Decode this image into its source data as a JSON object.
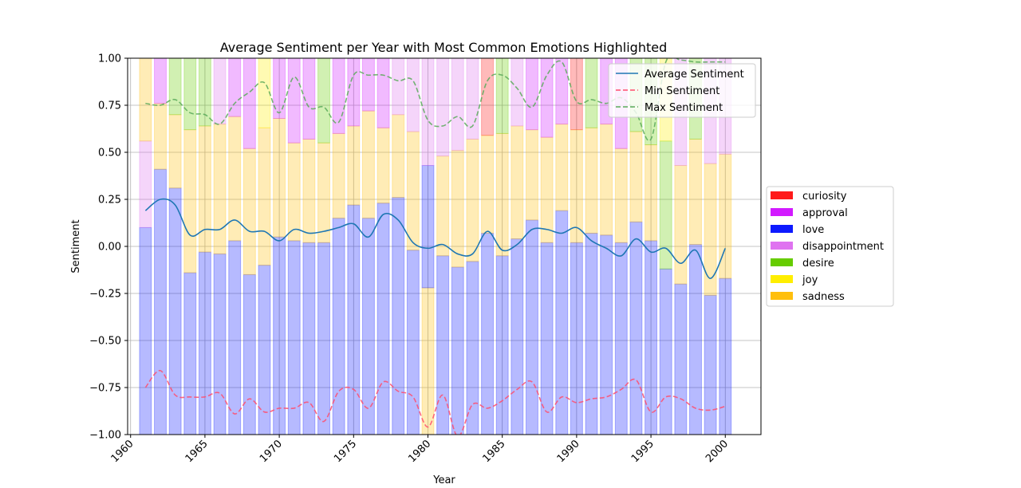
{
  "chart_data": {
    "type": "bar",
    "title": "Average Sentiment per Year with Most Common Emotions Highlighted",
    "xlabel": "Year",
    "ylabel": "Sentiment",
    "xlim": [
      1959.8,
      2002.4
    ],
    "ylim": [
      -1.0,
      1.0
    ],
    "xticks": [
      1960,
      1965,
      1970,
      1975,
      1980,
      1985,
      1990,
      1995,
      2000
    ],
    "yticks": [
      -1.0,
      -0.75,
      -0.5,
      -0.25,
      0.0,
      0.25,
      0.5,
      0.75,
      1.0
    ],
    "xtick_labels": [
      "1960",
      "1965",
      "1970",
      "1975",
      "1980",
      "1985",
      "1990",
      "1995",
      "2000"
    ],
    "ytick_labels": [
      "−1.00",
      "−0.75",
      "−0.50",
      "−0.25",
      "0.00",
      "0.25",
      "0.50",
      "0.75",
      "1.00"
    ],
    "grid": true,
    "emotion_legend_placement": "center-right outside",
    "line_legend_placement": "top-right",
    "emotion_colors": {
      "curiosity": "#ff1a1a",
      "approval": "#d21aff",
      "love": "#0d1aff",
      "disappointment": "#df73f0",
      "desire": "#66cc00",
      "joy": "#ffee00",
      "sadness": "#ffbf0d"
    },
    "emotion_legend": [
      "curiosity",
      "approval",
      "love",
      "disappointment",
      "desire",
      "joy",
      "sadness"
    ],
    "years": [
      1961,
      1962,
      1963,
      1964,
      1965,
      1966,
      1967,
      1968,
      1969,
      1970,
      1971,
      1972,
      1973,
      1974,
      1975,
      1976,
      1977,
      1978,
      1979,
      1980,
      1981,
      1982,
      1983,
      1984,
      1985,
      1986,
      1987,
      1988,
      1989,
      1990,
      1991,
      1992,
      1993,
      1994,
      1995,
      1996,
      1997,
      1998,
      1999,
      2000
    ],
    "stacked_emotions": [
      [
        [
          "love",
          0.1
        ],
        [
          "disappointment",
          0.56
        ],
        [
          "sadness",
          1.0
        ]
      ],
      [
        [
          "love",
          0.41
        ],
        [
          "sadness",
          0.76
        ],
        [
          "approval",
          1.0
        ]
      ],
      [
        [
          "love",
          0.31
        ],
        [
          "sadness",
          0.7
        ],
        [
          "desire",
          1.0
        ]
      ],
      [
        [
          "love",
          -0.14
        ],
        [
          "sadness",
          0.62
        ],
        [
          "desire",
          1.0
        ]
      ],
      [
        [
          "love",
          -0.03
        ],
        [
          "sadness",
          0.64
        ],
        [
          "desire",
          1.0
        ]
      ],
      [
        [
          "love",
          -0.04
        ],
        [
          "sadness",
          0.65
        ],
        [
          "disappointment",
          1.0
        ]
      ],
      [
        [
          "love",
          0.03
        ],
        [
          "sadness",
          0.69
        ],
        [
          "approval",
          1.0
        ]
      ],
      [
        [
          "love",
          -0.15
        ],
        [
          "sadness",
          0.52
        ],
        [
          "approval",
          1.0
        ]
      ],
      [
        [
          "love",
          -0.1
        ],
        [
          "sadness",
          0.63
        ],
        [
          "joy",
          1.0
        ]
      ],
      [
        [
          "love",
          0.05
        ],
        [
          "sadness",
          0.68
        ],
        [
          "approval",
          1.0
        ]
      ],
      [
        [
          "love",
          0.03
        ],
        [
          "sadness",
          0.55
        ],
        [
          "approval",
          1.0
        ]
      ],
      [
        [
          "love",
          0.02
        ],
        [
          "sadness",
          0.57
        ],
        [
          "approval",
          1.0
        ]
      ],
      [
        [
          "love",
          0.02
        ],
        [
          "sadness",
          0.55
        ],
        [
          "desire",
          1.0
        ]
      ],
      [
        [
          "love",
          0.15
        ],
        [
          "sadness",
          0.6
        ],
        [
          "approval",
          1.0
        ]
      ],
      [
        [
          "love",
          0.22
        ],
        [
          "sadness",
          0.64
        ],
        [
          "approval",
          1.0
        ]
      ],
      [
        [
          "love",
          0.15
        ],
        [
          "sadness",
          0.72
        ],
        [
          "approval",
          1.0
        ]
      ],
      [
        [
          "love",
          0.23
        ],
        [
          "sadness",
          0.63
        ],
        [
          "approval",
          1.0
        ]
      ],
      [
        [
          "love",
          0.26
        ],
        [
          "sadness",
          0.7
        ],
        [
          "disappointment",
          1.0
        ]
      ],
      [
        [
          "love",
          -0.02
        ],
        [
          "sadness",
          0.61
        ],
        [
          "disappointment",
          1.0
        ]
      ],
      [
        [
          "sadness",
          -0.22
        ],
        [
          "love",
          0.43
        ],
        [
          "disappointment",
          1.0
        ]
      ],
      [
        [
          "love",
          -0.05
        ],
        [
          "sadness",
          0.48
        ],
        [
          "disappointment",
          1.0
        ]
      ],
      [
        [
          "love",
          -0.11
        ],
        [
          "sadness",
          0.51
        ],
        [
          "disappointment",
          1.0
        ]
      ],
      [
        [
          "love",
          -0.08
        ],
        [
          "sadness",
          0.57
        ],
        [
          "disappointment",
          1.0
        ]
      ],
      [
        [
          "love",
          0.07
        ],
        [
          "sadness",
          0.59
        ],
        [
          "curiosity",
          1.0
        ]
      ],
      [
        [
          "love",
          -0.05
        ],
        [
          "sadness",
          0.6
        ],
        [
          "desire",
          1.0
        ]
      ],
      [
        [
          "love",
          0.04
        ],
        [
          "sadness",
          0.64
        ],
        [
          "disappointment",
          1.0
        ]
      ],
      [
        [
          "love",
          0.14
        ],
        [
          "sadness",
          0.62
        ],
        [
          "approval",
          1.0
        ]
      ],
      [
        [
          "love",
          0.02
        ],
        [
          "sadness",
          0.58
        ],
        [
          "approval",
          1.0
        ]
      ],
      [
        [
          "love",
          0.19
        ],
        [
          "sadness",
          0.65
        ],
        [
          "approval",
          1.0
        ]
      ],
      [
        [
          "love",
          0.02
        ],
        [
          "sadness",
          0.62
        ],
        [
          "curiosity",
          1.0
        ]
      ],
      [
        [
          "love",
          0.07
        ],
        [
          "sadness",
          0.63
        ],
        [
          "desire",
          1.0
        ]
      ],
      [
        [
          "love",
          0.06
        ],
        [
          "sadness",
          0.65
        ],
        [
          "approval",
          1.0
        ]
      ],
      [
        [
          "love",
          0.02
        ],
        [
          "sadness",
          0.52
        ],
        [
          "approval",
          1.0
        ]
      ],
      [
        [
          "love",
          0.13
        ],
        [
          "sadness",
          0.61
        ],
        [
          "desire",
          1.0
        ]
      ],
      [
        [
          "love",
          0.03
        ],
        [
          "sadness",
          0.54
        ],
        [
          "desire",
          1.0
        ]
      ],
      [
        [
          "love",
          -0.12
        ],
        [
          "desire",
          0.56
        ],
        [
          "joy",
          1.0
        ]
      ],
      [
        [
          "love",
          -0.2
        ],
        [
          "sadness",
          0.43
        ],
        [
          "disappointment",
          1.0
        ]
      ],
      [
        [
          "love",
          0.01
        ],
        [
          "sadness",
          0.57
        ],
        [
          "desire",
          1.0
        ]
      ],
      [
        [
          "love",
          -0.26
        ],
        [
          "sadness",
          0.44
        ],
        [
          "disappointment",
          1.0
        ]
      ],
      [
        [
          "love",
          -0.17
        ],
        [
          "sadness",
          0.49
        ],
        [
          "disappointment",
          1.0
        ]
      ]
    ],
    "series": [
      {
        "name": "Average Sentiment",
        "color": "#1f77b4",
        "style": "solid",
        "values": [
          0.19,
          0.25,
          0.22,
          0.06,
          0.09,
          0.09,
          0.14,
          0.08,
          0.08,
          0.03,
          0.09,
          0.07,
          0.08,
          0.1,
          0.12,
          0.05,
          0.17,
          0.14,
          0.02,
          -0.01,
          0.01,
          -0.04,
          -0.04,
          0.08,
          -0.02,
          0.01,
          0.09,
          0.09,
          0.07,
          0.1,
          0.03,
          -0.01,
          -0.05,
          0.04,
          -0.03,
          -0.01,
          -0.09,
          -0.02,
          -0.17,
          -0.01
        ]
      },
      {
        "name": "Min Sentiment",
        "color": "#ff4d6d",
        "style": "dashed",
        "values": [
          -0.75,
          -0.66,
          -0.79,
          -0.8,
          -0.8,
          -0.78,
          -0.89,
          -0.81,
          -0.88,
          -0.86,
          -0.86,
          -0.83,
          -0.93,
          -0.77,
          -0.76,
          -0.86,
          -0.72,
          -0.77,
          -0.8,
          -0.96,
          -0.79,
          -1.01,
          -0.84,
          -0.86,
          -0.82,
          -0.76,
          -0.72,
          -0.88,
          -0.8,
          -0.83,
          -0.81,
          -0.8,
          -0.76,
          -0.71,
          -0.88,
          -0.8,
          -0.81,
          -0.86,
          -0.87,
          -0.85
        ]
      },
      {
        "name": "Max Sentiment",
        "color": "#5aaa5a",
        "style": "dashed",
        "values": [
          0.76,
          0.75,
          0.78,
          0.71,
          0.7,
          0.65,
          0.76,
          0.82,
          0.87,
          0.71,
          0.9,
          0.74,
          0.74,
          0.66,
          0.91,
          0.91,
          0.91,
          0.88,
          0.88,
          0.67,
          0.64,
          0.69,
          0.64,
          0.88,
          0.91,
          0.84,
          0.74,
          0.91,
          0.98,
          0.77,
          0.78,
          0.76,
          0.79,
          0.71,
          0.57,
          0.98,
          0.99,
          0.98,
          0.98,
          0.98
        ]
      }
    ]
  }
}
